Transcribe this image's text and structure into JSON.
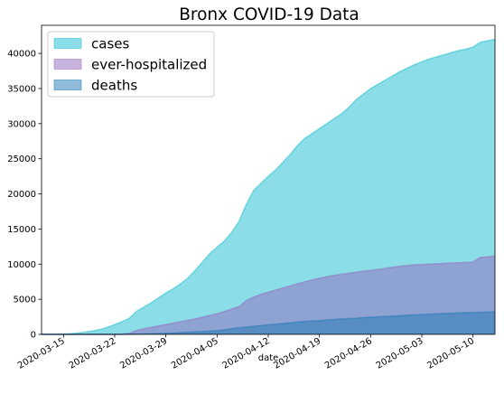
{
  "chart_data": {
    "type": "area",
    "title": "Bronx COVID-19 Data",
    "xlabel": "date",
    "ylabel": "",
    "ylim": [
      0,
      44000
    ],
    "x_start_date": "2020-03-12",
    "x_end_date": "2020-05-13",
    "legend_position": "top-left",
    "grid": false,
    "stacked": false,
    "x_tick_labels": [
      "2020-03-15",
      "2020-03-22",
      "2020-03-29",
      "2020-04-05",
      "2020-04-12",
      "2020-04-19",
      "2020-04-26",
      "2020-05-03",
      "2020-05-10"
    ],
    "y_ticks": [
      0,
      5000,
      10000,
      15000,
      20000,
      25000,
      30000,
      35000,
      40000
    ],
    "y_tick_labels": [
      "0",
      "5000",
      "10000",
      "15000",
      "20000",
      "25000",
      "30000",
      "35000",
      "40000"
    ],
    "x": [
      "2020-03-12",
      "2020-03-13",
      "2020-03-14",
      "2020-03-15",
      "2020-03-16",
      "2020-03-17",
      "2020-03-18",
      "2020-03-19",
      "2020-03-20",
      "2020-03-21",
      "2020-03-22",
      "2020-03-23",
      "2020-03-24",
      "2020-03-25",
      "2020-03-26",
      "2020-03-27",
      "2020-03-28",
      "2020-03-29",
      "2020-03-30",
      "2020-03-31",
      "2020-04-01",
      "2020-04-02",
      "2020-04-03",
      "2020-04-04",
      "2020-04-05",
      "2020-04-06",
      "2020-04-07",
      "2020-04-08",
      "2020-04-09",
      "2020-04-10",
      "2020-04-11",
      "2020-04-12",
      "2020-04-13",
      "2020-04-14",
      "2020-04-15",
      "2020-04-16",
      "2020-04-17",
      "2020-04-18",
      "2020-04-19",
      "2020-04-20",
      "2020-04-21",
      "2020-04-22",
      "2020-04-23",
      "2020-04-24",
      "2020-04-25",
      "2020-04-26",
      "2020-04-27",
      "2020-04-28",
      "2020-04-29",
      "2020-04-30",
      "2020-05-01",
      "2020-05-02",
      "2020-05-03",
      "2020-05-04",
      "2020-05-05",
      "2020-05-06",
      "2020-05-07",
      "2020-05-08",
      "2020-05-09",
      "2020-05-10",
      "2020-05-11",
      "2020-05-12",
      "2020-05-13"
    ],
    "series": [
      {
        "name": "cases",
        "color": "#17becf",
        "values": [
          5,
          10,
          20,
          40,
          100,
          200,
          330,
          500,
          700,
          1000,
          1400,
          1800,
          2300,
          3300,
          3900,
          4500,
          5200,
          5900,
          6500,
          7200,
          8000,
          9100,
          10300,
          11500,
          12400,
          13300,
          14500,
          16100,
          18500,
          20500,
          21500,
          22500,
          23400,
          24500,
          25600,
          26900,
          27900,
          28600,
          29300,
          30000,
          30700,
          31400,
          32300,
          33400,
          34200,
          35000,
          35600,
          36200,
          36800,
          37400,
          37900,
          38400,
          38800,
          39200,
          39500,
          39800,
          40100,
          40400,
          40600,
          40900,
          41600,
          41800,
          42000
        ]
      },
      {
        "name": "ever-hospitalized",
        "color": "#9467bd",
        "values": [
          0,
          0,
          0,
          0,
          0,
          0,
          0,
          0,
          0,
          0,
          0,
          50,
          150,
          550,
          800,
          1000,
          1200,
          1400,
          1600,
          1800,
          2000,
          2200,
          2450,
          2700,
          2950,
          3250,
          3600,
          3950,
          4800,
          5300,
          5700,
          6000,
          6300,
          6600,
          6900,
          7200,
          7500,
          7750,
          8000,
          8200,
          8400,
          8550,
          8700,
          8850,
          9000,
          9100,
          9250,
          9400,
          9550,
          9700,
          9800,
          9900,
          9950,
          10000,
          10050,
          10100,
          10150,
          10200,
          10250,
          10300,
          10950,
          11050,
          11150
        ]
      },
      {
        "name": "deaths",
        "color": "#1f77b4",
        "values": [
          0,
          0,
          0,
          0,
          0,
          0,
          0,
          0,
          0,
          0,
          0,
          0,
          10,
          30,
          60,
          90,
          120,
          160,
          200,
          250,
          300,
          350,
          400,
          470,
          550,
          650,
          800,
          950,
          1050,
          1150,
          1250,
          1350,
          1450,
          1550,
          1650,
          1750,
          1850,
          1900,
          1970,
          2050,
          2120,
          2180,
          2250,
          2300,
          2380,
          2450,
          2500,
          2550,
          2600,
          2650,
          2720,
          2780,
          2830,
          2880,
          2930,
          2970,
          3010,
          3050,
          3090,
          3120,
          3150,
          3180,
          3210
        ]
      }
    ]
  }
}
